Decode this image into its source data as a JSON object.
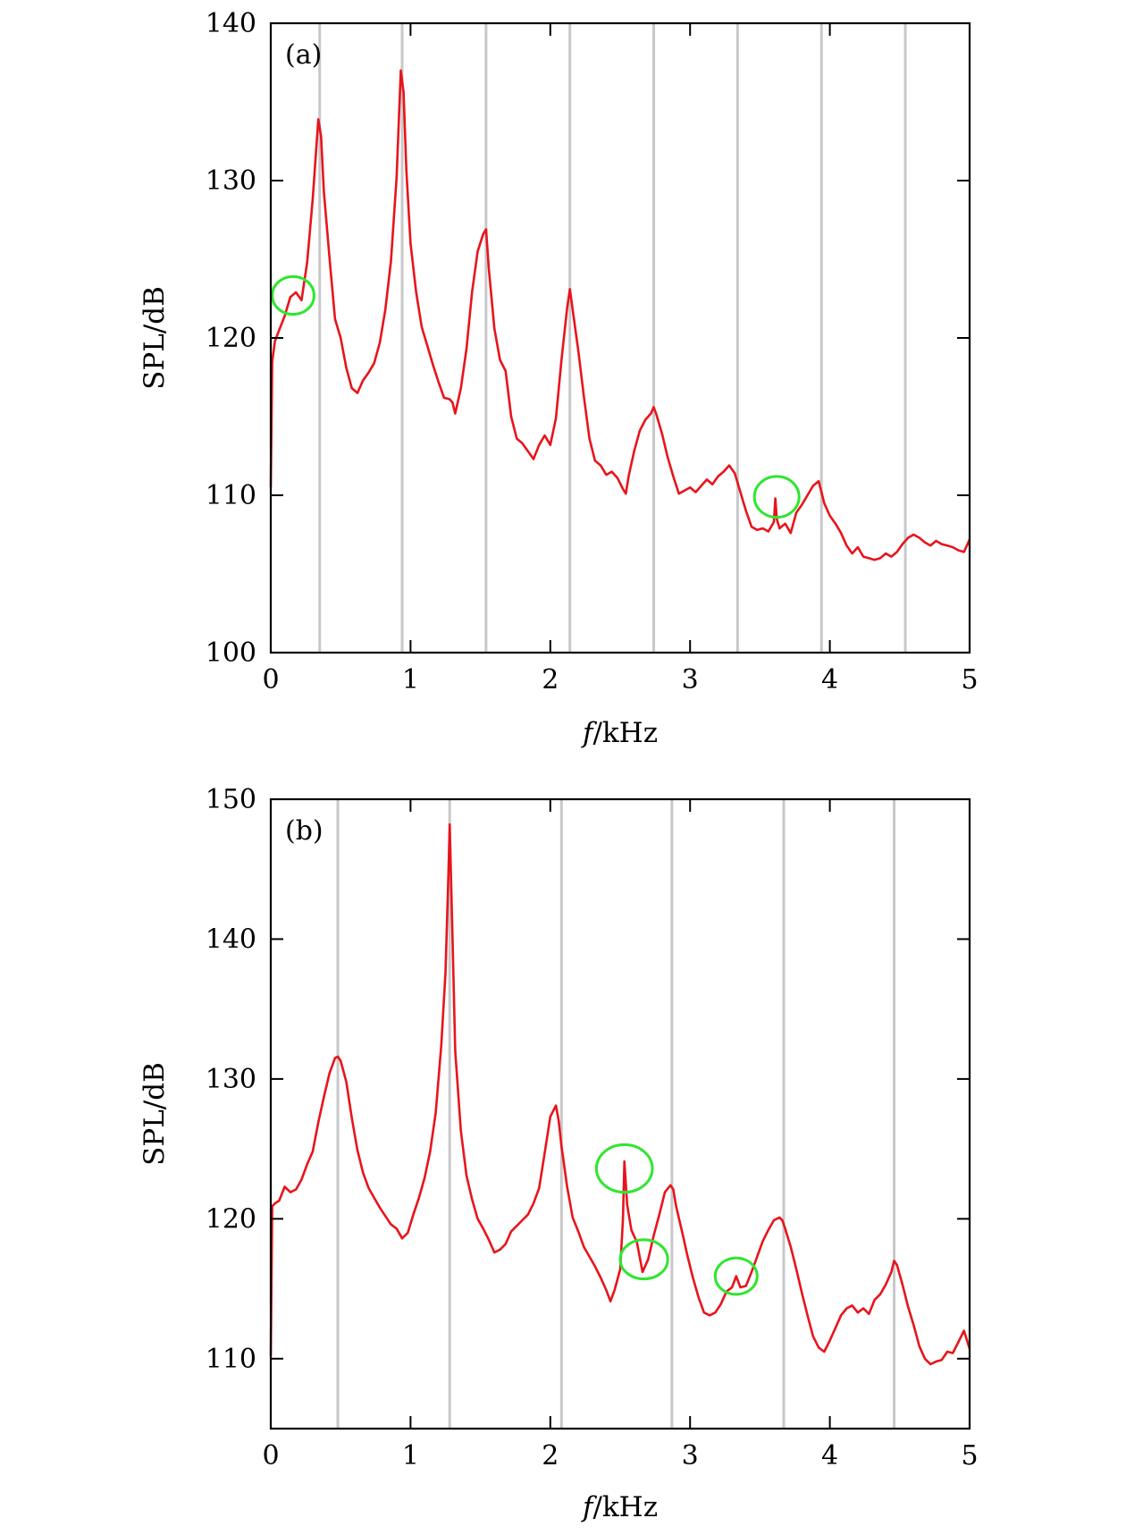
{
  "chart_data": [
    {
      "type": "line",
      "panel_label": "(a)",
      "xlabel_italic": "f",
      "xlabel_rest": "/kHz",
      "ylabel": "SPL/dB",
      "xlim": [
        0,
        5
      ],
      "ylim": [
        100,
        140
      ],
      "xticks": [
        0,
        1,
        2,
        3,
        4,
        5
      ],
      "yticks": [
        100,
        110,
        120,
        130,
        140
      ],
      "series_color": "#e8141b",
      "vlines": [
        0.35,
        0.94,
        1.54,
        2.14,
        2.74,
        3.34,
        3.94,
        4.54
      ],
      "vline_color": "#c8c8c8",
      "highlight_color": "#2fe62f",
      "highlights": [
        {
          "x": 0.16,
          "y": 122.7,
          "rx": 0.15,
          "ry": 1.2
        },
        {
          "x": 3.62,
          "y": 109.9,
          "rx": 0.16,
          "ry": 1.3
        }
      ],
      "series": [
        {
          "x": [
            0.0,
            0.01,
            0.03,
            0.06,
            0.1,
            0.14,
            0.18,
            0.22,
            0.26,
            0.3,
            0.34,
            0.36,
            0.38,
            0.42,
            0.46,
            0.5,
            0.54,
            0.58,
            0.62,
            0.66,
            0.7,
            0.74,
            0.78,
            0.82,
            0.86,
            0.9,
            0.93,
            0.95,
            0.97,
            1.0,
            1.04,
            1.08,
            1.12,
            1.16,
            1.2,
            1.24,
            1.28,
            1.3,
            1.32,
            1.36,
            1.4,
            1.44,
            1.48,
            1.52,
            1.54,
            1.56,
            1.6,
            1.64,
            1.68,
            1.72,
            1.76,
            1.8,
            1.84,
            1.88,
            1.92,
            1.96,
            2.0,
            2.04,
            2.08,
            2.12,
            2.14,
            2.16,
            2.2,
            2.24,
            2.28,
            2.32,
            2.36,
            2.4,
            2.44,
            2.48,
            2.52,
            2.54,
            2.56,
            2.6,
            2.64,
            2.68,
            2.72,
            2.74,
            2.76,
            2.8,
            2.84,
            2.88,
            2.92,
            2.96,
            3.0,
            3.04,
            3.08,
            3.12,
            3.16,
            3.2,
            3.24,
            3.28,
            3.32,
            3.36,
            3.4,
            3.44,
            3.48,
            3.52,
            3.56,
            3.6,
            3.61,
            3.62,
            3.64,
            3.68,
            3.72,
            3.76,
            3.8,
            3.84,
            3.88,
            3.92,
            3.94,
            3.96,
            4.0,
            4.04,
            4.08,
            4.12,
            4.16,
            4.2,
            4.24,
            4.28,
            4.32,
            4.36,
            4.4,
            4.44,
            4.48,
            4.52,
            4.56,
            4.6,
            4.64,
            4.68,
            4.72,
            4.76,
            4.8,
            4.84,
            4.88,
            4.92,
            4.96,
            5.0
          ],
          "values": [
            110.5,
            118.5,
            119.8,
            120.5,
            121.4,
            122.6,
            122.9,
            122.4,
            124.8,
            128.8,
            133.9,
            132.8,
            129.3,
            125.1,
            121.2,
            120.0,
            118.1,
            116.8,
            116.5,
            117.3,
            117.8,
            118.4,
            119.7,
            121.8,
            124.9,
            130.2,
            137.0,
            135.6,
            130.7,
            126.0,
            122.9,
            120.7,
            119.5,
            118.3,
            117.2,
            116.2,
            116.1,
            115.9,
            115.2,
            116.8,
            119.3,
            122.9,
            125.5,
            126.6,
            126.9,
            124.4,
            120.6,
            118.6,
            117.9,
            115.0,
            113.6,
            113.3,
            112.8,
            112.3,
            113.2,
            113.8,
            113.2,
            114.9,
            118.6,
            121.9,
            123.1,
            121.8,
            119.2,
            116.3,
            113.6,
            112.2,
            111.9,
            111.3,
            111.5,
            111.1,
            110.4,
            110.1,
            111.2,
            112.8,
            114.1,
            114.8,
            115.2,
            115.6,
            115.1,
            113.9,
            112.4,
            111.2,
            110.1,
            110.3,
            110.5,
            110.2,
            110.6,
            111.0,
            110.7,
            111.2,
            111.5,
            111.9,
            111.4,
            110.2,
            109.0,
            108.0,
            107.8,
            107.9,
            107.7,
            108.3,
            109.8,
            108.5,
            107.9,
            108.2,
            107.6,
            108.9,
            109.4,
            110.0,
            110.6,
            110.9,
            110.2,
            109.5,
            108.7,
            108.2,
            107.6,
            106.8,
            106.3,
            106.7,
            106.1,
            106.0,
            105.9,
            106.0,
            106.3,
            106.1,
            106.4,
            106.9,
            107.3,
            107.5,
            107.3,
            107.0,
            106.8,
            107.1,
            106.9,
            106.8,
            106.7,
            106.5,
            106.4,
            107.2
          ]
        }
      ]
    },
    {
      "type": "line",
      "panel_label": "(b)",
      "xlabel_italic": "f",
      "xlabel_rest": "/kHz",
      "ylabel": "SPL/dB",
      "xlim": [
        0,
        5
      ],
      "ylim": [
        105,
        150
      ],
      "xticks": [
        0,
        1,
        2,
        3,
        4,
        5
      ],
      "yticks": [
        110,
        120,
        130,
        140,
        150
      ],
      "series_color": "#e8141b",
      "vlines": [
        0.48,
        1.28,
        2.08,
        2.87,
        3.67,
        4.46
      ],
      "vline_color": "#c8c8c8",
      "highlight_color": "#2fe62f",
      "highlights": [
        {
          "x": 2.53,
          "y": 123.6,
          "rx": 0.2,
          "ry": 1.7
        },
        {
          "x": 2.67,
          "y": 117.1,
          "rx": 0.17,
          "ry": 1.4
        },
        {
          "x": 3.33,
          "y": 115.9,
          "rx": 0.15,
          "ry": 1.3
        }
      ],
      "series": [
        {
          "x": [
            0.0,
            0.01,
            0.03,
            0.06,
            0.1,
            0.14,
            0.18,
            0.22,
            0.26,
            0.3,
            0.34,
            0.38,
            0.42,
            0.46,
            0.48,
            0.5,
            0.54,
            0.58,
            0.62,
            0.66,
            0.7,
            0.74,
            0.78,
            0.82,
            0.86,
            0.9,
            0.94,
            0.98,
            1.02,
            1.06,
            1.1,
            1.14,
            1.18,
            1.22,
            1.25,
            1.27,
            1.28,
            1.3,
            1.32,
            1.36,
            1.4,
            1.44,
            1.48,
            1.52,
            1.56,
            1.6,
            1.64,
            1.68,
            1.72,
            1.76,
            1.8,
            1.84,
            1.88,
            1.92,
            1.96,
            2.0,
            2.04,
            2.06,
            2.08,
            2.12,
            2.16,
            2.2,
            2.24,
            2.28,
            2.32,
            2.36,
            2.4,
            2.43,
            2.46,
            2.5,
            2.52,
            2.53,
            2.55,
            2.58,
            2.62,
            2.66,
            2.7,
            2.74,
            2.78,
            2.82,
            2.86,
            2.88,
            2.9,
            2.94,
            2.98,
            3.02,
            3.06,
            3.1,
            3.14,
            3.18,
            3.22,
            3.26,
            3.3,
            3.33,
            3.36,
            3.4,
            3.44,
            3.48,
            3.52,
            3.56,
            3.6,
            3.64,
            3.66,
            3.68,
            3.72,
            3.76,
            3.8,
            3.84,
            3.88,
            3.92,
            3.96,
            4.0,
            4.04,
            4.08,
            4.12,
            4.16,
            4.2,
            4.24,
            4.28,
            4.32,
            4.36,
            4.4,
            4.44,
            4.46,
            4.48,
            4.52,
            4.56,
            4.6,
            4.64,
            4.68,
            4.72,
            4.76,
            4.8,
            4.84,
            4.88,
            4.92,
            4.96,
            5.0
          ],
          "values": [
            110.2,
            120.9,
            121.1,
            121.3,
            122.3,
            121.9,
            122.1,
            122.8,
            123.9,
            124.8,
            126.9,
            128.7,
            130.4,
            131.5,
            131.6,
            131.3,
            129.8,
            127.2,
            124.9,
            123.3,
            122.2,
            121.5,
            120.8,
            120.2,
            119.6,
            119.3,
            118.6,
            119.0,
            120.3,
            121.5,
            122.9,
            124.8,
            127.6,
            132.4,
            137.6,
            144.2,
            148.2,
            140.3,
            132.0,
            126.3,
            123.1,
            121.4,
            120.0,
            119.3,
            118.5,
            117.6,
            117.8,
            118.2,
            119.1,
            119.5,
            119.9,
            120.3,
            121.1,
            122.2,
            124.7,
            127.3,
            128.1,
            127.0,
            125.2,
            122.3,
            120.1,
            119.1,
            118.0,
            117.3,
            116.6,
            115.8,
            114.9,
            114.1,
            114.9,
            116.4,
            120.0,
            124.1,
            121.0,
            119.2,
            118.3,
            116.2,
            117.1,
            118.8,
            120.3,
            121.9,
            122.4,
            122.1,
            120.9,
            119.2,
            117.4,
            115.8,
            114.4,
            113.3,
            113.1,
            113.3,
            113.9,
            114.8,
            115.1,
            115.9,
            115.1,
            115.2,
            116.2,
            117.3,
            118.4,
            119.2,
            119.9,
            120.1,
            119.9,
            119.3,
            118.0,
            116.4,
            114.7,
            113.1,
            111.6,
            110.8,
            110.5,
            111.3,
            112.2,
            113.1,
            113.6,
            113.8,
            113.3,
            113.6,
            113.2,
            114.2,
            114.6,
            115.3,
            116.2,
            117.0,
            116.7,
            115.3,
            113.7,
            112.4,
            110.9,
            110.0,
            109.6,
            109.8,
            109.9,
            110.5,
            110.4,
            111.2,
            112.0,
            110.7
          ]
        }
      ]
    }
  ]
}
